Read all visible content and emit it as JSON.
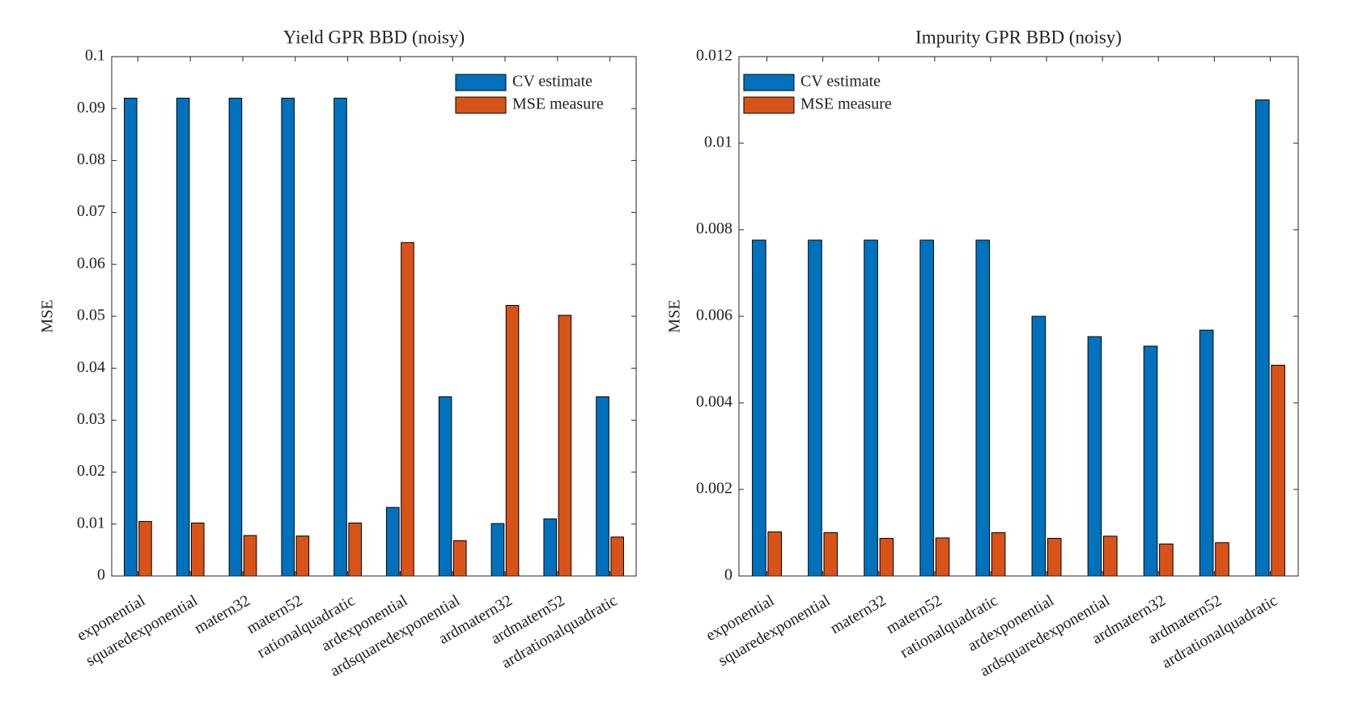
{
  "chart_data": [
    {
      "type": "bar",
      "title": "Yield GPR BBD (noisy)",
      "y_label": "MSE",
      "categories": [
        "exponential",
        "squaredexponential",
        "matern32",
        "matern52",
        "rationalquadratic",
        "ardexponential",
        "ardsquaredexponential",
        "ardmatern32",
        "ardmatern52",
        "ardrationalquadratic"
      ],
      "series": [
        {
          "name": "CV estimate",
          "color": "#0072BD",
          "values": [
            0.092,
            0.092,
            0.092,
            0.092,
            0.092,
            0.0132,
            0.0345,
            0.0101,
            0.011,
            0.0345
          ]
        },
        {
          "name": "MSE measure",
          "color": "#D95319",
          "values": [
            0.0105,
            0.0102,
            0.0078,
            0.0077,
            0.0102,
            0.0642,
            0.0068,
            0.0521,
            0.0502,
            0.0075
          ]
        }
      ],
      "ylim": [
        0,
        0.1
      ],
      "yticks": [
        0,
        0.01,
        0.02,
        0.03,
        0.04,
        0.05,
        0.06,
        0.07,
        0.08,
        0.09,
        0.1
      ],
      "legend": "northeast"
    },
    {
      "type": "bar",
      "title": "Impurity GPR BBD (noisy)",
      "y_label": "MSE",
      "categories": [
        "exponential",
        "squaredexponential",
        "matern32",
        "matern52",
        "rationalquadratic",
        "ardexponential",
        "ardsquaredexponential",
        "ardmatern32",
        "ardmatern52",
        "ardrationalquadratic"
      ],
      "series": [
        {
          "name": "CV estimate",
          "color": "#0072BD",
          "values": [
            0.00776,
            0.00776,
            0.00776,
            0.00776,
            0.00776,
            0.006,
            0.00553,
            0.00531,
            0.00568,
            0.011
          ]
        },
        {
          "name": "MSE measure",
          "color": "#D95319",
          "values": [
            0.00102,
            0.001,
            0.00087,
            0.00088,
            0.001,
            0.00087,
            0.00092,
            0.00074,
            0.00077,
            0.00487
          ]
        }
      ],
      "ylim": [
        0,
        0.012
      ],
      "yticks": [
        0,
        0.002,
        0.004,
        0.006,
        0.008,
        0.01,
        0.012
      ],
      "legend": "northwest"
    }
  ]
}
